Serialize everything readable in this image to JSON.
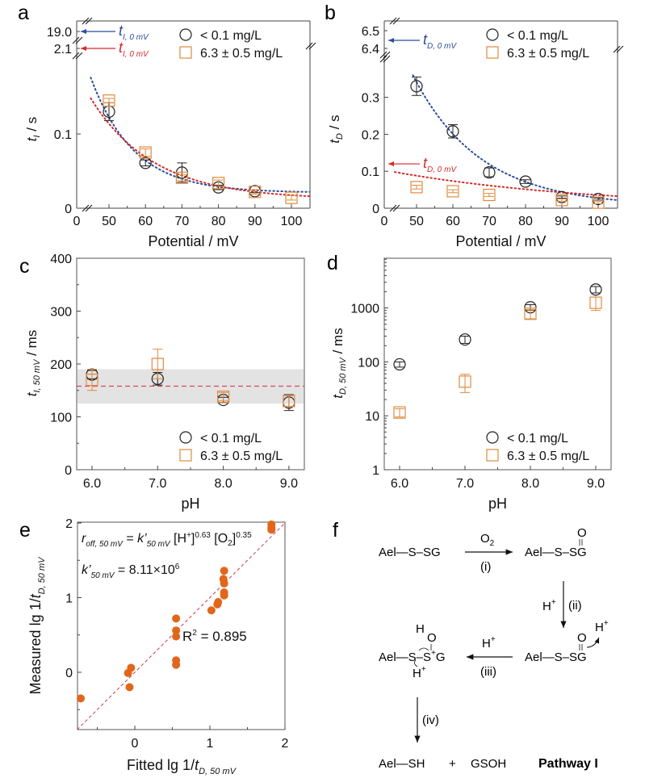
{
  "legend": {
    "circle": "< 0.1 mg/L",
    "square": "6.3 ± 0.5 mg/L"
  },
  "colors": {
    "black": "#222222",
    "orange": "#E08A3C",
    "blue": "#2B4C9B",
    "red": "#D62828",
    "scatter": "#E2661A",
    "band": "#E3E3E3",
    "dash": "#D9475A"
  },
  "chart_data": [
    {
      "panel": "a",
      "type": "scatter",
      "xlabel": "Potential / mV",
      "ylabel": "t_I / s",
      "ylabel_main": "t",
      "ylabel_sub": "I",
      "ylabel_rest": " / s",
      "x_ticks": [
        "0",
        "50",
        "60",
        "70",
        "80",
        "90",
        "100"
      ],
      "y_ticks": [
        "0",
        "0.1"
      ],
      "y_break_ticks": [
        "19.0",
        "2.1"
      ],
      "annotations": [
        {
          "text_main": "t",
          "text_sub": "I, 0 mV",
          "value": 19.0,
          "color": "blue"
        },
        {
          "text_main": "t",
          "text_sub": "I, 0 mV",
          "value": 2.1,
          "color": "red"
        }
      ],
      "xlim": [
        40,
        105
      ],
      "ylim": [
        0,
        0.18
      ],
      "series": [
        {
          "name": "< 0.1 mg/L",
          "marker": "circle",
          "x": [
            50,
            60,
            70,
            80,
            90
          ],
          "y": [
            0.13,
            0.061,
            0.048,
            0.028,
            0.023
          ],
          "err": [
            0.012,
            0.004,
            0.013,
            0.003,
            0.002
          ]
        },
        {
          "name": "6.3 ± 0.5 mg/L",
          "marker": "square",
          "x": [
            50,
            60,
            70,
            80,
            90,
            100
          ],
          "y": [
            0.145,
            0.075,
            0.041,
            0.034,
            0.022,
            0.014
          ],
          "err": [
            0.003,
            0.005,
            0.004,
            0.004,
            0.003,
            0.003
          ]
        }
      ],
      "fits": [
        {
          "color": "blue",
          "y0": 0.021,
          "A": 0.155,
          "k": 0.085,
          "from": 45
        },
        {
          "color": "red",
          "y0": 0.012,
          "A": 0.136,
          "k": 0.058,
          "from": 45
        }
      ]
    },
    {
      "panel": "b",
      "type": "scatter",
      "xlabel": "Potential / mV",
      "ylabel": "t_D / s",
      "ylabel_main": "t",
      "ylabel_sub": "D",
      "ylabel_rest": " / s",
      "x_ticks": [
        "0",
        "50",
        "60",
        "70",
        "80",
        "90",
        "100"
      ],
      "y_ticks": [
        "0",
        "0.1",
        "0.2",
        "0.3"
      ],
      "y_break_ticks": [
        "6.5",
        "6.4"
      ],
      "annotations": [
        {
          "text_main": "t",
          "text_sub": "D, 0 mV",
          "value": 6.45,
          "color": "blue"
        },
        {
          "text_main": "t",
          "text_sub": "D, 0 mV",
          "value": 0.12,
          "color": "red"
        }
      ],
      "xlim": [
        40,
        105
      ],
      "ylim": [
        0,
        0.4
      ],
      "series": [
        {
          "name": "< 0.1 mg/L",
          "marker": "circle",
          "x": [
            50,
            60,
            70,
            80,
            90,
            100
          ],
          "y": [
            0.33,
            0.208,
            0.097,
            0.072,
            0.03,
            0.025
          ],
          "err": [
            0.025,
            0.018,
            0.012,
            0.005,
            0.003,
            0.003
          ]
        },
        {
          "name": "6.3 ± 0.5 mg/L",
          "marker": "square",
          "x": [
            50,
            60,
            70,
            90,
            100
          ],
          "y": [
            0.057,
            0.046,
            0.036,
            0.022,
            0.015
          ],
          "err": [
            0.005,
            0.004,
            0.004,
            0.003,
            0.003
          ]
        }
      ],
      "fits": [
        {
          "color": "blue",
          "y0": 0.005,
          "A": 0.395,
          "k": 0.054,
          "from": 47
        },
        {
          "color": "red",
          "y0": 0.0,
          "A": 0.098,
          "k": 0.018,
          "from": 44
        }
      ]
    },
    {
      "panel": "c",
      "type": "scatter",
      "xlabel": "pH",
      "ylabel_main": "t",
      "ylabel_sub": "I, 50 mV",
      "ylabel_rest": " / ms",
      "x_ticks": [
        "6.0",
        "7.0",
        "8.0",
        "9.0"
      ],
      "y_ticks": [
        "0",
        "100",
        "200",
        "300",
        "400"
      ],
      "xlim": [
        5.77,
        9.23
      ],
      "ylim": [
        0,
        400
      ],
      "band": [
        125,
        190
      ],
      "mean_line": 158,
      "series": [
        {
          "name": "< 0.1 mg/L",
          "marker": "circle",
          "x": [
            6.0,
            7.0,
            8.0,
            9.0
          ],
          "y": [
            180,
            172,
            132,
            127
          ],
          "err": [
            8,
            12,
            5,
            15
          ]
        },
        {
          "name": "6.3 ± 0.5 mg/L",
          "marker": "square",
          "x": [
            6.0,
            7.0,
            8.0,
            9.0
          ],
          "y": [
            170,
            200,
            138,
            130
          ],
          "err": [
            20,
            28,
            8,
            10
          ]
        }
      ]
    },
    {
      "panel": "d",
      "type": "scatter",
      "xlabel": "pH",
      "ylabel_main": "t",
      "ylabel_sub": "D, 50 mV",
      "ylabel_rest": " / ms",
      "yscale": "log",
      "x_ticks": [
        "6.0",
        "7.0",
        "8.0",
        "9.0"
      ],
      "y_ticks": [
        "1",
        "10",
        "100",
        "1000"
      ],
      "xlim": [
        5.77,
        9.23
      ],
      "ylim": [
        1,
        8600
      ],
      "series": [
        {
          "name": "< 0.1 mg/L",
          "marker": "circle",
          "x": [
            6.0,
            7.0,
            8.0,
            9.0
          ],
          "y": [
            90,
            260,
            1030,
            2200
          ],
          "err": [
            10,
            40,
            120,
            300
          ]
        },
        {
          "name": "6.3 ± 0.5 mg/L",
          "marker": "square",
          "x": [
            6.0,
            7.0,
            8.0,
            9.0
          ],
          "y": [
            11.5,
            43,
            780,
            1250
          ],
          "err": [
            2,
            16,
            150,
            350
          ]
        }
      ]
    },
    {
      "panel": "e",
      "type": "scatter",
      "xlabel_main": "Fitted lg 1/",
      "xlabel_t": "t",
      "xlabel_sub": "D, 50 mV",
      "ylabel_main": "Measured lg 1/",
      "ylabel_t": "t",
      "ylabel_sub": "D, 50 mV",
      "x_ticks": [
        "0",
        "1",
        "2"
      ],
      "y_ticks": [
        "0",
        "1",
        "2"
      ],
      "xlim": [
        -0.77,
        2.03
      ],
      "ylim": [
        -0.77,
        2.03
      ],
      "equation": {
        "r": "r",
        "r_sub": "off, 50 mV",
        "eq": " = ",
        "k": "k’",
        "k_sub": "50 mV",
        "h": " [H",
        "h_sup": "+",
        "h_close": "]",
        "h_exp": "0.63",
        "o": " [O",
        "o_sub": "2",
        "o_close": "]",
        "o_exp": "0.35"
      },
      "constant": {
        "k": "k’",
        "k_sub": "50 mV",
        "value": " = 8.11×10",
        "exp": "6"
      },
      "r2": {
        "label": "R",
        "sup": "2",
        "value": " = 0.895"
      },
      "x": [
        -0.72,
        -0.09,
        -0.05,
        -0.07,
        0.55,
        0.55,
        0.55,
        0.55,
        0.55,
        1.02,
        1.1,
        1.11,
        1.18,
        1.19,
        1.19,
        1.19,
        1.19,
        1.82,
        1.82,
        1.82
      ],
      "y": [
        -0.35,
        -0.01,
        0.06,
        -0.2,
        0.72,
        0.56,
        0.48,
        0.16,
        0.1,
        0.83,
        0.91,
        0.94,
        1.25,
        1.36,
        1.19,
        1.07,
        1.03,
        1.98,
        1.91,
        1.94
      ],
      "reference_line": "y = x"
    }
  ],
  "scheme": {
    "panel": "f",
    "s1": "Ael—S–SG",
    "s2": "Ael—S–SG",
    "s2_o": "O",
    "s3": "Ael—S–SG",
    "s3_o": "O",
    "s3_h": "H",
    "s3_hsup": "+",
    "s4": "Ael—S–S",
    "s4_g": "G",
    "s4_plus": "+",
    "s4_h": "H",
    "s4_o": "O",
    "s4_hb": "H",
    "s4_hbsup": "+",
    "step1_top": "O",
    "step1_top_sub": "2",
    "step1_label": "(i)",
    "step2_reagent": "H",
    "step2_sup": "+",
    "step2_label": "(ii)",
    "step3_reagent": "H",
    "step3_sup": "+",
    "step3_label": "(iii)",
    "step4_label": "(iv)",
    "product1": "Ael—SH",
    "plus": "+",
    "product2": "GSOH",
    "pathway": "Pathway I"
  },
  "panel_labels": [
    "a",
    "b",
    "c",
    "d",
    "e",
    "f"
  ]
}
